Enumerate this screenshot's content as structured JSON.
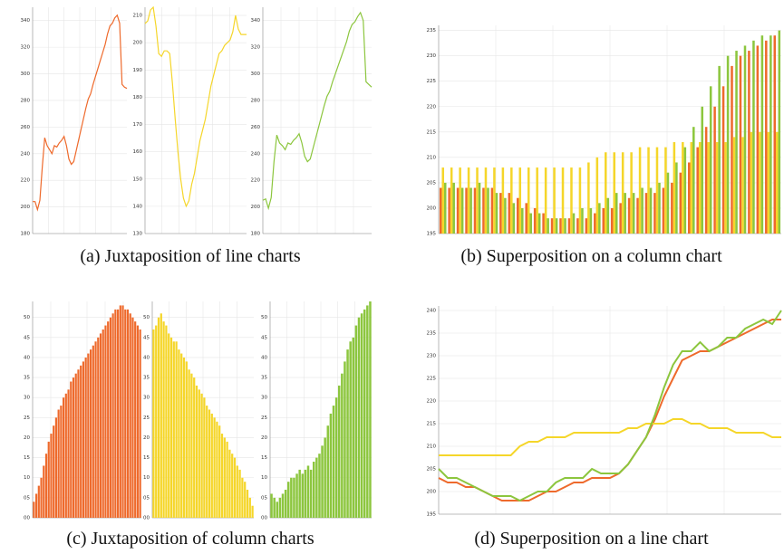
{
  "captions": [
    "(a) Juxtaposition of line charts",
    "(b) Superposition on a column chart",
    "(c) Juxtaposition of column charts",
    "(d) Superposition on a line chart"
  ],
  "chart_data": [
    {
      "type": "line",
      "ylim": [
        180,
        350
      ],
      "yticks": [
        180,
        200,
        220,
        240,
        260,
        280,
        300,
        320,
        340
      ],
      "grid": true,
      "series": [
        {
          "color": "#ee6a2c",
          "values": [
            204,
            204,
            198,
            205,
            230,
            252,
            246,
            243,
            240,
            246,
            245,
            248,
            250,
            253,
            246,
            236,
            232,
            234,
            242,
            250,
            258,
            266,
            274,
            281,
            285,
            292,
            298,
            304,
            310,
            316,
            322,
            330,
            336,
            338,
            342,
            344,
            338,
            292,
            290,
            289
          ]
        }
      ]
    },
    {
      "type": "line",
      "ylim": [
        130,
        213
      ],
      "yticks": [
        130,
        140,
        150,
        160,
        170,
        180,
        190,
        200,
        210
      ],
      "grid": true,
      "series": [
        {
          "color": "#f5d62a",
          "values": [
            207,
            208,
            212,
            213,
            206,
            196,
            195,
            197,
            197,
            196,
            185,
            172,
            160,
            150,
            143,
            140,
            142,
            148,
            152,
            158,
            164,
            168,
            172,
            178,
            184,
            188,
            192,
            196,
            197,
            199,
            200,
            201,
            204,
            210,
            205,
            203,
            203,
            203
          ]
        }
      ]
    },
    {
      "type": "line",
      "ylim": [
        180,
        350
      ],
      "yticks": [
        180,
        200,
        220,
        240,
        260,
        280,
        300,
        320,
        340
      ],
      "grid": true,
      "series": [
        {
          "color": "#8cc63e",
          "values": [
            205,
            206,
            199,
            207,
            234,
            254,
            248,
            246,
            243,
            248,
            247,
            250,
            252,
            255,
            248,
            238,
            234,
            236,
            244,
            252,
            260,
            268,
            276,
            283,
            287,
            294,
            300,
            306,
            312,
            318,
            324,
            332,
            337,
            339,
            343,
            346,
            340,
            294,
            292,
            290
          ]
        }
      ]
    },
    {
      "type": "bar",
      "ylim": [
        195,
        236
      ],
      "yticks": [
        195,
        200,
        205,
        210,
        215,
        220,
        225,
        230,
        235
      ],
      "grid": true,
      "series": [
        {
          "color": "#ee6a2c",
          "values": [
            204,
            204,
            204,
            204,
            204,
            204,
            204,
            203,
            203,
            202,
            201,
            200,
            199,
            198,
            198,
            198,
            198,
            198,
            199,
            200,
            200,
            201,
            202,
            202,
            203,
            203,
            204,
            205,
            207,
            209,
            212,
            216,
            220,
            224,
            228,
            230,
            231,
            232,
            233,
            234
          ]
        },
        {
          "color": "#f5d62a",
          "values": [
            208,
            208,
            208,
            208,
            208,
            208,
            208,
            208,
            208,
            208,
            208,
            208,
            208,
            208,
            208,
            208,
            208,
            209,
            210,
            211,
            211,
            211,
            211,
            212,
            212,
            212,
            212,
            213,
            213,
            213,
            213,
            213,
            213,
            213,
            214,
            214,
            215,
            215,
            215,
            215
          ]
        },
        {
          "color": "#8cc63e",
          "values": [
            205,
            205,
            204,
            204,
            205,
            204,
            203,
            202,
            201,
            200,
            199,
            199,
            198,
            198,
            198,
            199,
            200,
            200,
            201,
            202,
            203,
            203,
            203,
            204,
            204,
            205,
            207,
            209,
            212,
            216,
            220,
            224,
            228,
            230,
            231,
            232,
            233,
            234,
            234,
            235
          ]
        }
      ]
    },
    {
      "type": "bar",
      "ylim": [
        0,
        54
      ],
      "yticks": [
        {
          "value": 0,
          "label": "00"
        },
        {
          "value": 5,
          "label": "05"
        },
        10,
        15,
        20,
        25,
        30,
        35,
        40,
        45,
        50
      ],
      "grid": true,
      "series": [
        {
          "color": "#ee6a2c",
          "values": [
            4,
            6,
            8,
            10,
            13,
            16,
            19,
            21,
            23,
            25,
            27,
            28,
            30,
            31,
            32,
            34,
            35,
            36,
            37,
            38,
            39,
            40,
            41,
            42,
            43,
            44,
            45,
            46,
            47,
            48,
            49,
            50,
            51,
            52,
            52,
            53,
            53,
            52,
            52,
            51,
            50,
            49,
            48,
            47
          ]
        }
      ]
    },
    {
      "type": "bar",
      "ylim": [
        0,
        54
      ],
      "yticks": [
        {
          "value": 0,
          "label": "00"
        },
        {
          "value": 5,
          "label": "05"
        },
        10,
        15,
        20,
        25,
        30,
        35,
        40,
        45,
        50
      ],
      "grid": true,
      "series": [
        {
          "color": "#f5d62a",
          "values": [
            47,
            48,
            50,
            51,
            49,
            48,
            46,
            45,
            44,
            44,
            42,
            41,
            40,
            39,
            37,
            36,
            35,
            33,
            32,
            31,
            30,
            28,
            27,
            26,
            25,
            24,
            23,
            21,
            20,
            19,
            17,
            16,
            15,
            13,
            12,
            10,
            9,
            7,
            5,
            3
          ]
        }
      ]
    },
    {
      "type": "bar",
      "ylim": [
        0,
        54
      ],
      "yticks": [
        {
          "value": 0,
          "label": "00"
        },
        {
          "value": 5,
          "label": "05"
        },
        10,
        15,
        20,
        25,
        30,
        35,
        40,
        45,
        50
      ],
      "grid": true,
      "series": [
        {
          "color": "#8cc63e",
          "values": [
            6,
            5,
            4,
            5,
            6,
            7,
            9,
            10,
            10,
            11,
            12,
            11,
            12,
            13,
            12,
            14,
            15,
            16,
            18,
            20,
            23,
            26,
            28,
            30,
            33,
            36,
            39,
            42,
            44,
            45,
            48,
            50,
            51,
            52,
            53,
            54
          ]
        }
      ]
    },
    {
      "type": "line",
      "ylim": [
        195,
        241
      ],
      "yticks": [
        195,
        200,
        205,
        210,
        215,
        220,
        225,
        230,
        235,
        240
      ],
      "grid": true,
      "series": [
        {
          "color": "#ee6a2c",
          "values": [
            203,
            202,
            202,
            201,
            201,
            200,
            199,
            198,
            198,
            198,
            198,
            199,
            200,
            200,
            201,
            202,
            202,
            203,
            203,
            203,
            204,
            206,
            209,
            212,
            216,
            221,
            225,
            229,
            230,
            231,
            231,
            232,
            233,
            234,
            235,
            236,
            237,
            238,
            238
          ]
        },
        {
          "color": "#f5d62a",
          "values": [
            208,
            208,
            208,
            208,
            208,
            208,
            208,
            208,
            208,
            210,
            211,
            211,
            212,
            212,
            212,
            213,
            213,
            213,
            213,
            213,
            213,
            214,
            214,
            215,
            215,
            215,
            216,
            216,
            215,
            215,
            214,
            214,
            214,
            213,
            213,
            213,
            213,
            212,
            212
          ]
        },
        {
          "color": "#8cc63e",
          "values": [
            205,
            203,
            203,
            202,
            201,
            200,
            199,
            199,
            199,
            198,
            199,
            200,
            200,
            202,
            203,
            203,
            203,
            205,
            204,
            204,
            204,
            206,
            209,
            212,
            217,
            223,
            228,
            231,
            231,
            233,
            231,
            232,
            234,
            234,
            236,
            237,
            238,
            237,
            240
          ]
        }
      ]
    }
  ]
}
